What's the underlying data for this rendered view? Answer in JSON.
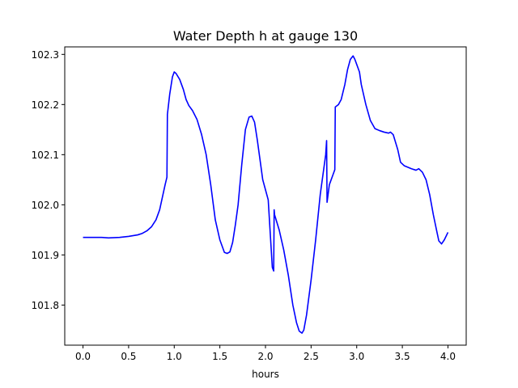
{
  "chart_data": {
    "type": "line",
    "title": "Water Depth h at gauge 130",
    "xlabel": "hours",
    "ylabel": "",
    "xlim": [
      -0.2,
      4.2
    ],
    "ylim": [
      101.72,
      102.315
    ],
    "xticks": [
      0.0,
      0.5,
      1.0,
      1.5,
      2.0,
      2.5,
      3.0,
      3.5,
      4.0
    ],
    "xtick_labels": [
      "0.0",
      "0.5",
      "1.0",
      "1.5",
      "2.0",
      "2.5",
      "3.0",
      "3.5",
      "4.0"
    ],
    "yticks": [
      101.8,
      101.9,
      102.0,
      102.1,
      102.2,
      102.3
    ],
    "ytick_labels": [
      "101.8",
      "101.9",
      "102.0",
      "102.1",
      "102.2",
      "102.3"
    ],
    "grid": false,
    "color": "#0000ff",
    "series": [
      {
        "x": [
          0.0,
          0.1,
          0.2,
          0.28,
          0.4,
          0.5,
          0.6,
          0.65,
          0.7,
          0.75,
          0.8,
          0.84,
          0.87,
          0.9,
          0.92,
          0.925,
          0.95,
          0.98,
          1.0,
          1.02,
          1.06,
          1.1,
          1.13,
          1.16,
          1.2,
          1.25,
          1.3,
          1.35,
          1.4,
          1.45,
          1.5,
          1.55,
          1.58,
          1.61,
          1.64,
          1.67,
          1.7,
          1.74,
          1.78,
          1.82,
          1.85,
          1.88,
          1.91,
          1.94,
          1.97,
          2.0,
          2.03,
          2.07,
          2.075,
          2.09,
          2.095,
          2.1,
          2.15,
          2.2,
          2.25,
          2.3,
          2.34,
          2.37,
          2.4,
          2.42,
          2.45,
          2.5,
          2.55,
          2.6,
          2.66,
          2.67,
          2.675,
          2.7,
          2.74,
          2.76,
          2.765,
          2.8,
          2.83,
          2.87,
          2.9,
          2.93,
          2.96,
          2.98,
          3.0,
          3.03,
          3.05,
          3.1,
          3.15,
          3.2,
          3.25,
          3.3,
          3.35,
          3.37,
          3.4,
          3.45,
          3.48,
          3.52,
          3.6,
          3.65,
          3.68,
          3.72,
          3.76,
          3.8,
          3.84,
          3.88,
          3.9,
          3.93,
          3.96,
          4.0
        ],
        "y": [
          101.935,
          101.935,
          101.935,
          101.934,
          101.935,
          101.937,
          101.94,
          101.943,
          101.948,
          101.956,
          101.97,
          101.99,
          102.015,
          102.04,
          102.055,
          102.18,
          102.22,
          102.255,
          102.265,
          102.262,
          102.25,
          102.23,
          102.21,
          102.198,
          102.188,
          102.17,
          102.14,
          102.1,
          102.04,
          101.97,
          101.93,
          101.905,
          101.903,
          101.906,
          101.925,
          101.96,
          102.0,
          102.08,
          102.15,
          102.175,
          102.177,
          102.165,
          102.13,
          102.09,
          102.05,
          102.03,
          102.01,
          101.89,
          101.875,
          101.868,
          101.99,
          101.98,
          101.95,
          101.91,
          101.86,
          101.8,
          101.765,
          101.748,
          101.744,
          101.75,
          101.78,
          101.85,
          101.93,
          102.02,
          102.1,
          102.128,
          102.005,
          102.04,
          102.06,
          102.07,
          102.195,
          102.2,
          102.21,
          102.24,
          102.27,
          102.29,
          102.297,
          102.29,
          102.28,
          102.265,
          102.24,
          102.2,
          102.168,
          102.152,
          102.148,
          102.145,
          102.143,
          102.145,
          102.14,
          102.11,
          102.085,
          102.078,
          102.072,
          102.069,
          102.072,
          102.065,
          102.05,
          102.02,
          101.98,
          101.945,
          101.928,
          101.922,
          101.93,
          101.945
        ]
      }
    ]
  }
}
